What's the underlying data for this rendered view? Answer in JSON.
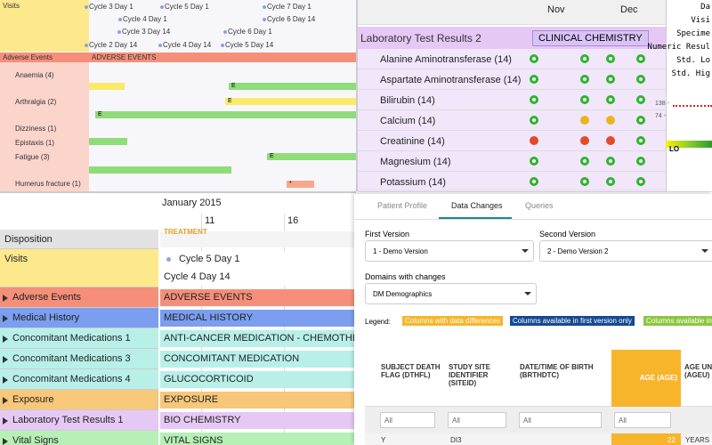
{
  "top_left": {
    "visits_label": "Visits",
    "visits": [
      "Cycle 3 Day 1",
      "Cycle 5 Day 1",
      "Cycle 7 Day 1",
      "Cycle 4 Day 1",
      "Cycle 6 Day 14",
      "Cycle 3 Day 14",
      "Cycle 6 Day 1",
      "Cycle 2 Day 14",
      "Cycle 4 Day 14",
      "Cycle 5 Day 14"
    ],
    "adverse_events_label": "Adverse Events",
    "adverse_events_band": "ADVERSE EVENTS",
    "events": [
      "Anaemia (4)",
      "Arthralgia (2)",
      "Dizziness (1)",
      "Epistaxis (1)",
      "Fatigue (3)",
      "Humerus fracture (1)"
    ],
    "bar_marks": [
      "E",
      "E",
      "E",
      "E",
      "*"
    ]
  },
  "top_right": {
    "months": [
      "Nov",
      "Dec"
    ],
    "group": "Laboratory Test Results 2",
    "group_tag": "CLINICAL CHEMISTRY",
    "tests": [
      "Alanine Aminotransferase (14)",
      "Aspartate Aminotransferase (14)",
      "Bilirubin (14)",
      "Calcium (14)",
      "Creatinine (14)",
      "Magnesium (14)",
      "Potassium (14)"
    ],
    "detail": {
      "labels": [
        "Da",
        "Visi",
        "Specime",
        "Numeric Resul",
        "Std. Lo",
        "Std. Hig"
      ],
      "ticks": [
        "138 -",
        "74 -"
      ],
      "lo": "LO"
    }
  },
  "bottom_left": {
    "month": "January 2015",
    "days": [
      "11",
      "16"
    ],
    "rows": [
      {
        "label": "Disposition",
        "band": "TREATMENT"
      },
      {
        "label": "Visits",
        "band": "Cycle 5 Day 1",
        "band2": "Cycle 4 Day 14"
      },
      {
        "label": "Adverse Events",
        "band": "ADVERSE EVENTS"
      },
      {
        "label": "Medical History",
        "band": "MEDICAL HISTORY"
      },
      {
        "label": "Concomitant Medications 1",
        "band": "ANTI-CANCER MEDICATION - CHEMOTHERAPY"
      },
      {
        "label": "Concomitant Medications 3",
        "band": "CONCOMITANT MEDICATION"
      },
      {
        "label": "Concomitant Medications 4",
        "band": "GLUCOCORTICOID"
      },
      {
        "label": "Exposure",
        "band": "EXPOSURE"
      },
      {
        "label": "Laboratory Test Results 1",
        "band": "BIO CHEMISTRY"
      },
      {
        "label": "Vital Signs",
        "band": "VITAL SIGNS"
      }
    ]
  },
  "bottom_right": {
    "tabs": [
      "Patient Profile",
      "Data Changes",
      "Queries"
    ],
    "first_version_label": "First Version",
    "first_version": "1 - Demo Version",
    "second_version_label": "Second Version",
    "second_version": "2 - Demo Version 2",
    "domains_label": "Domains with changes",
    "domain": "DM Demographics",
    "legend_label": "Legend:",
    "legend": [
      "Columns with data differences",
      "Columns available in first version only",
      "Columns available in"
    ],
    "columns": [
      "SUBJECT DEATH FLAG (DTHFL)",
      "STUDY SITE IDENTIFIER (SITEID)",
      "DATE/TIME OF BIRTH (BRTHDTC)",
      "AGE (AGE)",
      "AGE UN (AGEU)"
    ],
    "filters": [
      "All",
      "All",
      "All",
      "All"
    ],
    "row": [
      "Y",
      "DI3",
      "22",
      "YEARS"
    ]
  }
}
